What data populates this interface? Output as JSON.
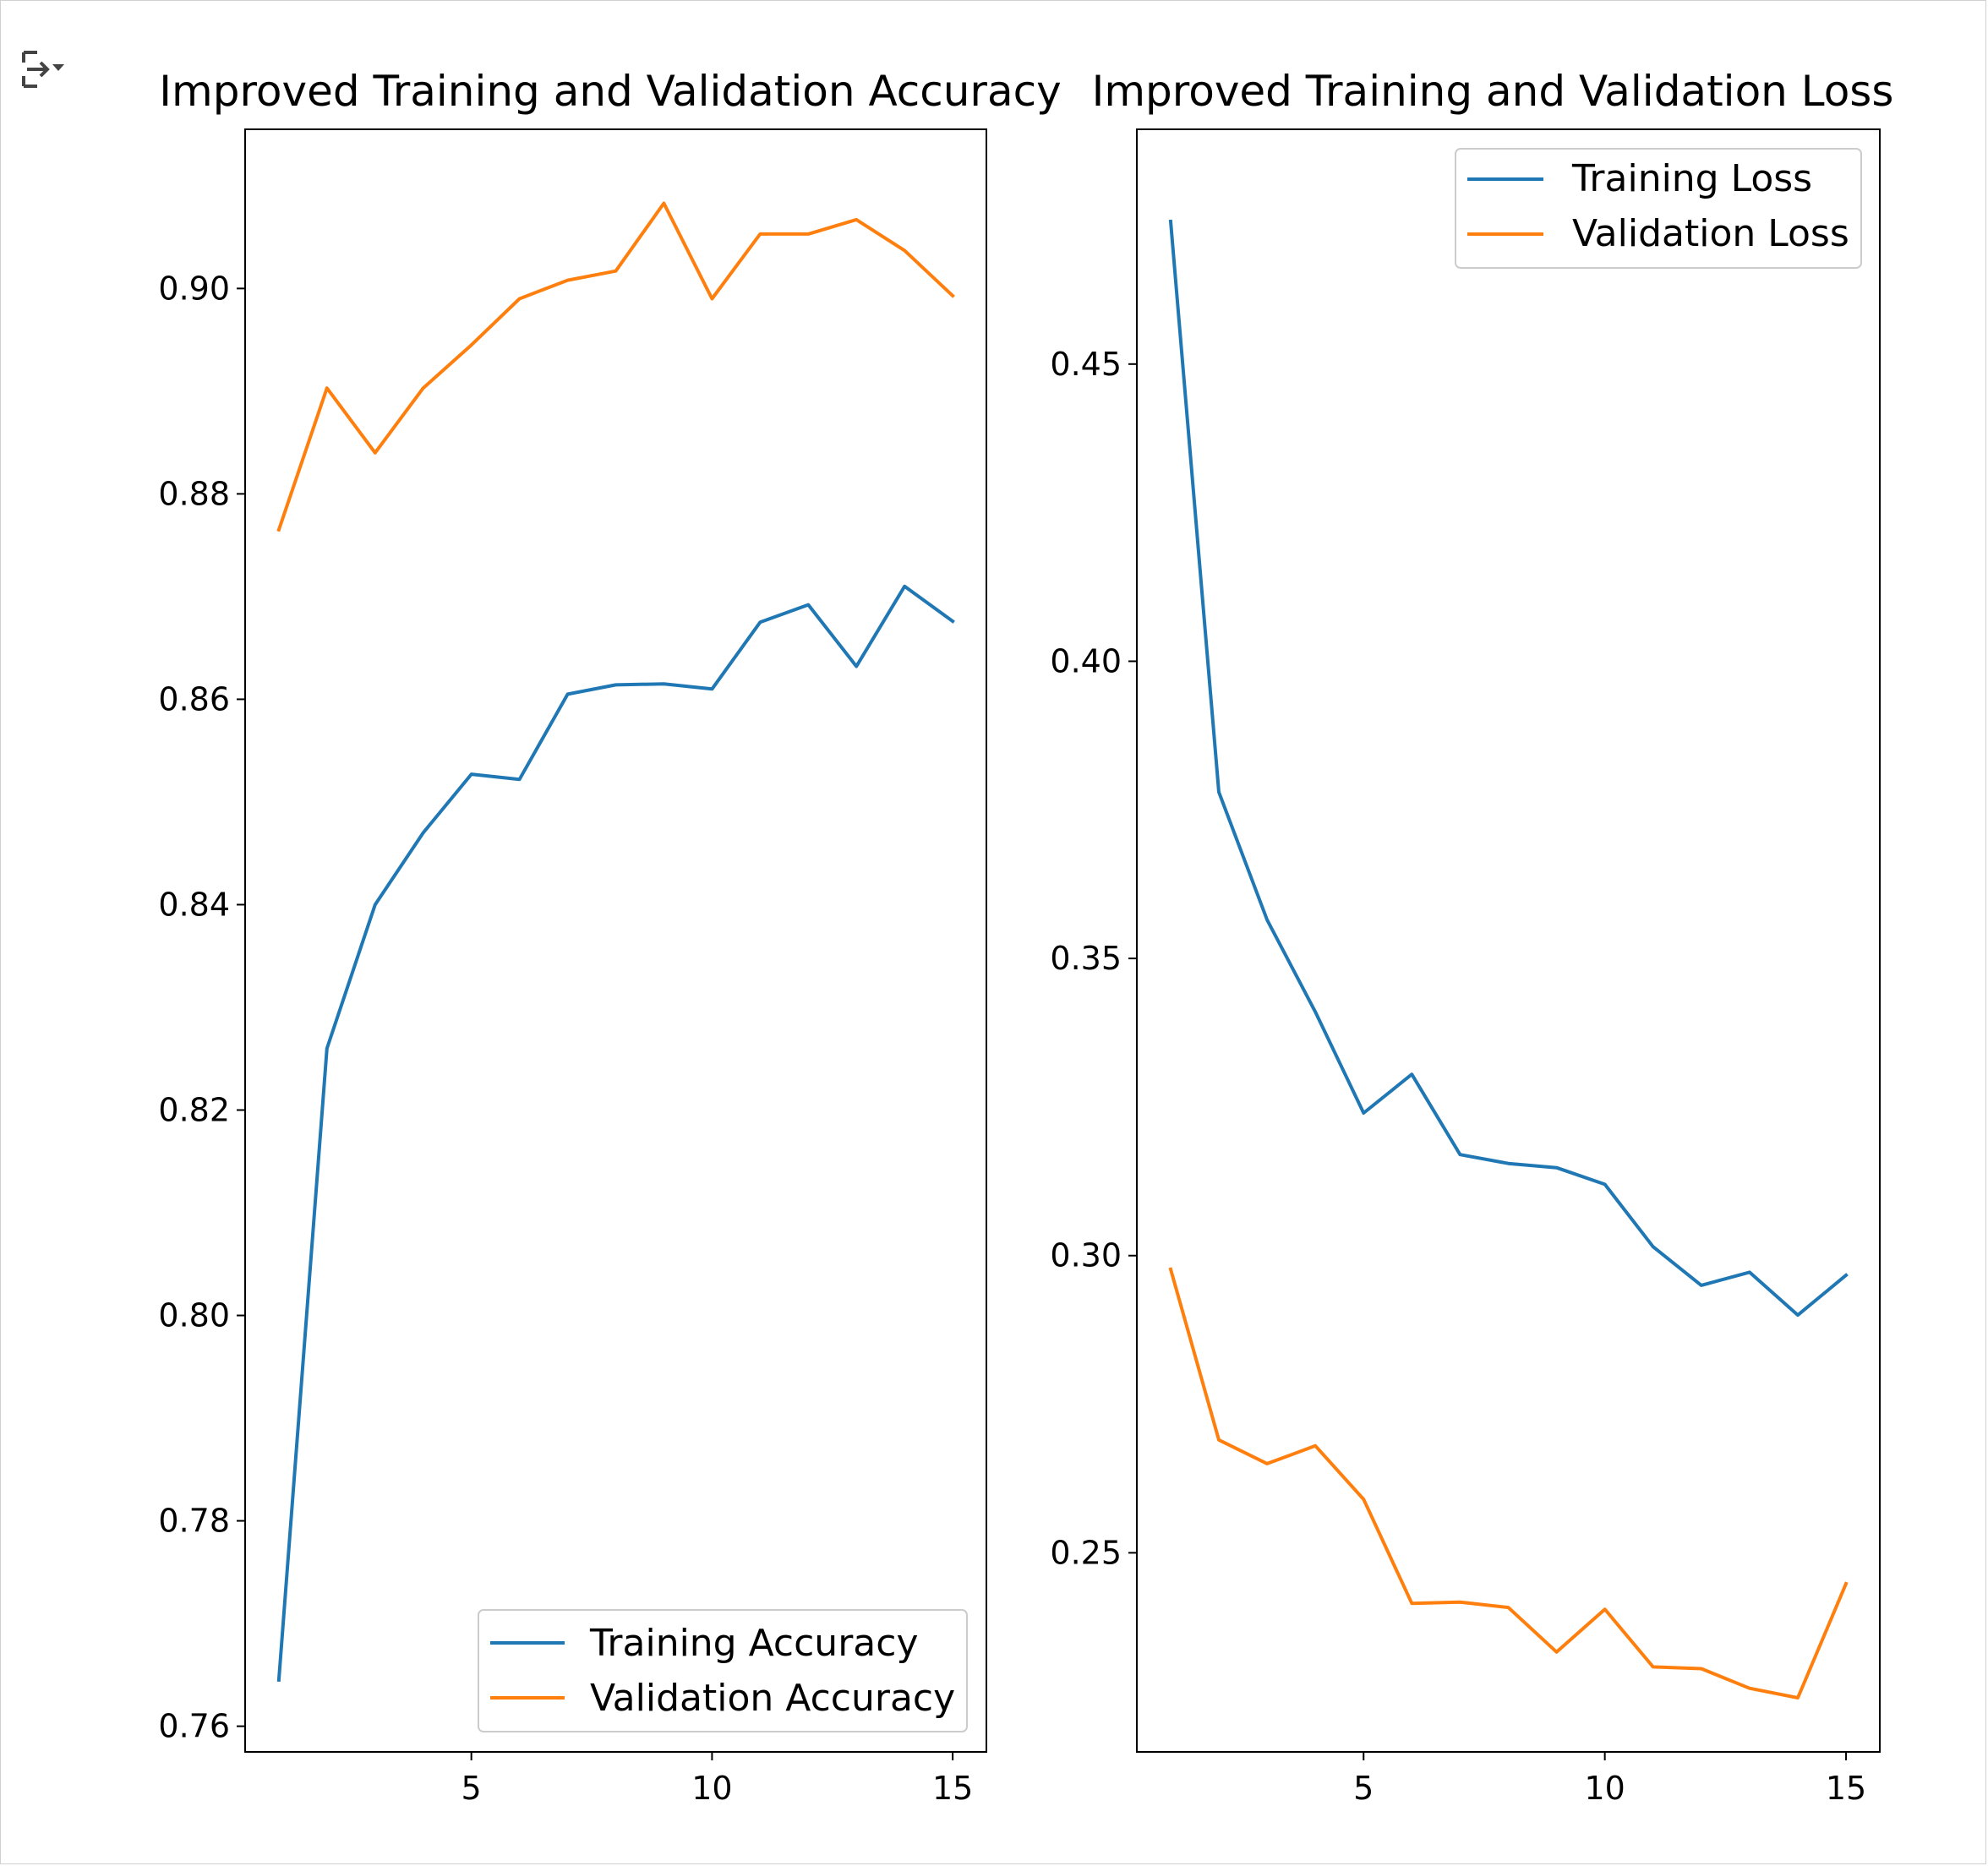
{
  "figure": {
    "expand_icon": "output-collapse-icon"
  },
  "chart_data": [
    {
      "type": "line",
      "title": "Improved Training and Validation Accuracy",
      "xlabel": "",
      "ylabel": "",
      "xlim": [
        0.3,
        15.7
      ],
      "ylim": [
        0.7575,
        0.9155
      ],
      "xticks": [
        5,
        10,
        15
      ],
      "yticks": [
        0.76,
        0.78,
        0.8,
        0.82,
        0.84,
        0.86,
        0.88,
        0.9
      ],
      "ytick_labels": [
        "0.76",
        "0.78",
        "0.80",
        "0.82",
        "0.84",
        "0.86",
        "0.88",
        "0.90"
      ],
      "grid": false,
      "legend_position": "lower-right",
      "x": [
        1,
        2,
        3,
        4,
        5,
        6,
        7,
        8,
        9,
        10,
        11,
        12,
        13,
        14,
        15
      ],
      "series": [
        {
          "name": "Training Accuracy",
          "color": "#1f77b4",
          "values": [
            0.7645,
            0.826,
            0.84,
            0.847,
            0.8527,
            0.8522,
            0.8605,
            0.8614,
            0.8615,
            0.861,
            0.8675,
            0.8692,
            0.8632,
            0.871,
            0.8676
          ]
        },
        {
          "name": "Validation Accuracy",
          "color": "#ff7f0e",
          "values": [
            0.8765,
            0.8903,
            0.884,
            0.8903,
            0.8945,
            0.899,
            0.9008,
            0.9017,
            0.9083,
            0.899,
            0.9053,
            0.9053,
            0.9067,
            0.9037,
            0.8993
          ]
        }
      ]
    },
    {
      "type": "line",
      "title": "Improved Training and Validation Loss",
      "xlabel": "",
      "ylabel": "",
      "xlim": [
        0.3,
        15.7
      ],
      "ylim": [
        0.2165,
        0.4895
      ],
      "xticks": [
        5,
        10,
        15
      ],
      "yticks": [
        0.25,
        0.3,
        0.35,
        0.4,
        0.45
      ],
      "ytick_labels": [
        "0.25",
        "0.30",
        "0.35",
        "0.40",
        "0.45"
      ],
      "grid": false,
      "legend_position": "top-right",
      "x": [
        1,
        2,
        3,
        4,
        5,
        6,
        7,
        8,
        9,
        10,
        11,
        12,
        13,
        14,
        15
      ],
      "series": [
        {
          "name": "Training Loss",
          "color": "#1f77b4",
          "values": [
            0.474,
            0.378,
            0.3565,
            0.341,
            0.324,
            0.3305,
            0.317,
            0.3155,
            0.3148,
            0.312,
            0.3015,
            0.295,
            0.2972,
            0.29,
            0.2967
          ]
        },
        {
          "name": "Validation Loss",
          "color": "#ff7f0e",
          "values": [
            0.2977,
            0.269,
            0.265,
            0.268,
            0.259,
            0.2415,
            0.2417,
            0.2408,
            0.2333,
            0.2405,
            0.2308,
            0.2305,
            0.2272,
            0.2256,
            0.2448
          ]
        }
      ]
    }
  ]
}
